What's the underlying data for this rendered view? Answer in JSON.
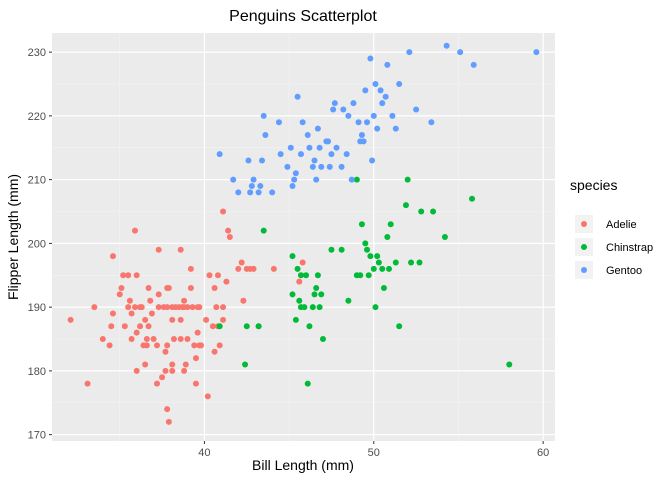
{
  "chart_data": {
    "type": "scatter",
    "title": "Penguins Scatterplot",
    "xlabel": "Bill Length (mm)",
    "ylabel": "Flipper Length (mm)",
    "xlim": [
      31.0,
      60.7
    ],
    "ylim": [
      169.0,
      233.0
    ],
    "x_ticks": [
      40,
      50,
      60
    ],
    "y_ticks": [
      170,
      180,
      190,
      200,
      210,
      220,
      230
    ],
    "grid": true,
    "legend": {
      "title": "species",
      "placement": "right"
    },
    "series": [
      {
        "name": "Adelie",
        "color": "#F8766D",
        "points": [
          [
            32.1,
            188
          ],
          [
            33.1,
            178
          ],
          [
            33.5,
            190
          ],
          [
            34.0,
            185
          ],
          [
            34.4,
            184
          ],
          [
            34.5,
            187
          ],
          [
            34.6,
            189
          ],
          [
            34.6,
            198
          ],
          [
            35.0,
            192
          ],
          [
            35.1,
            193
          ],
          [
            35.2,
            195
          ],
          [
            35.3,
            187
          ],
          [
            35.5,
            190
          ],
          [
            35.5,
            195
          ],
          [
            35.6,
            191
          ],
          [
            35.7,
            185
          ],
          [
            35.7,
            189
          ],
          [
            35.9,
            190
          ],
          [
            35.9,
            202
          ],
          [
            36.0,
            180
          ],
          [
            36.0,
            186
          ],
          [
            36.0,
            195
          ],
          [
            36.2,
            187
          ],
          [
            36.2,
            190
          ],
          [
            36.3,
            190
          ],
          [
            36.4,
            184
          ],
          [
            36.5,
            181
          ],
          [
            36.5,
            188
          ],
          [
            36.6,
            184
          ],
          [
            36.6,
            185
          ],
          [
            36.7,
            187
          ],
          [
            36.7,
            193
          ],
          [
            36.8,
            191
          ],
          [
            36.9,
            189
          ],
          [
            37.0,
            185
          ],
          [
            37.2,
            178
          ],
          [
            37.2,
            184
          ],
          [
            37.3,
            190
          ],
          [
            37.3,
            192
          ],
          [
            37.3,
            199
          ],
          [
            37.5,
            179
          ],
          [
            37.6,
            190
          ],
          [
            37.7,
            180
          ],
          [
            37.7,
            183
          ],
          [
            37.8,
            174
          ],
          [
            37.8,
            184
          ],
          [
            37.8,
            190
          ],
          [
            37.8,
            193
          ],
          [
            37.9,
            172
          ],
          [
            37.9,
            193
          ],
          [
            38.1,
            180
          ],
          [
            38.1,
            181
          ],
          [
            38.1,
            188
          ],
          [
            38.1,
            190
          ],
          [
            38.2,
            185
          ],
          [
            38.3,
            190
          ],
          [
            38.5,
            190
          ],
          [
            38.6,
            185
          ],
          [
            38.6,
            188
          ],
          [
            38.6,
            199
          ],
          [
            38.7,
            190
          ],
          [
            38.8,
            180
          ],
          [
            38.8,
            190
          ],
          [
            38.8,
            191
          ],
          [
            38.9,
            181
          ],
          [
            39.0,
            185
          ],
          [
            39.0,
            190
          ],
          [
            39.2,
            193
          ],
          [
            39.2,
            196
          ],
          [
            39.3,
            190
          ],
          [
            39.4,
            184
          ],
          [
            39.5,
            178
          ],
          [
            39.5,
            182
          ],
          [
            39.6,
            186
          ],
          [
            39.6,
            190
          ],
          [
            39.7,
            184
          ],
          [
            39.7,
            190
          ],
          [
            39.8,
            184
          ],
          [
            40.1,
            188
          ],
          [
            40.2,
            176
          ],
          [
            40.3,
            195
          ],
          [
            40.5,
            187
          ],
          [
            40.6,
            183
          ],
          [
            40.6,
            193
          ],
          [
            40.7,
            190
          ],
          [
            40.8,
            187
          ],
          [
            40.8,
            195
          ],
          [
            40.9,
            184
          ],
          [
            41.1,
            188
          ],
          [
            41.1,
            190
          ],
          [
            41.1,
            205
          ],
          [
            41.3,
            194
          ],
          [
            41.4,
            202
          ],
          [
            41.5,
            201
          ],
          [
            42.0,
            196
          ],
          [
            42.2,
            197
          ],
          [
            42.3,
            191
          ],
          [
            42.5,
            196
          ],
          [
            42.7,
            196
          ],
          [
            42.9,
            196
          ],
          [
            43.2,
            187
          ],
          [
            44.1,
            196
          ],
          [
            45.6,
            194
          ],
          [
            45.8,
            197
          ]
        ]
      },
      {
        "name": "Chinstrap",
        "color": "#00BA38",
        "points": [
          [
            40.9,
            187
          ],
          [
            42.4,
            181
          ],
          [
            42.5,
            187
          ],
          [
            43.2,
            187
          ],
          [
            43.5,
            202
          ],
          [
            45.2,
            192
          ],
          [
            45.2,
            198
          ],
          [
            45.4,
            188
          ],
          [
            45.5,
            196
          ],
          [
            45.6,
            191
          ],
          [
            45.7,
            190
          ],
          [
            45.7,
            195
          ],
          [
            45.9,
            190
          ],
          [
            46.0,
            195
          ],
          [
            46.1,
            178
          ],
          [
            46.2,
            187
          ],
          [
            46.4,
            190
          ],
          [
            46.5,
            192
          ],
          [
            46.6,
            193
          ],
          [
            46.7,
            195
          ],
          [
            46.8,
            190
          ],
          [
            46.9,
            192
          ],
          [
            47.0,
            185
          ],
          [
            47.5,
            199
          ],
          [
            48.1,
            199
          ],
          [
            48.5,
            191
          ],
          [
            49.0,
            195
          ],
          [
            49.0,
            210
          ],
          [
            49.2,
            195
          ],
          [
            49.3,
            203
          ],
          [
            49.5,
            200
          ],
          [
            49.6,
            199
          ],
          [
            49.7,
            195
          ],
          [
            49.8,
            198
          ],
          [
            50.0,
            196
          ],
          [
            50.1,
            190
          ],
          [
            50.2,
            198
          ],
          [
            50.3,
            197
          ],
          [
            50.5,
            196
          ],
          [
            50.6,
            193
          ],
          [
            50.8,
            201
          ],
          [
            50.9,
            196
          ],
          [
            51.0,
            203
          ],
          [
            51.3,
            197
          ],
          [
            51.5,
            187
          ],
          [
            51.9,
            206
          ],
          [
            52.0,
            210
          ],
          [
            52.2,
            197
          ],
          [
            52.7,
            197
          ],
          [
            52.8,
            205
          ],
          [
            53.5,
            205
          ],
          [
            54.2,
            201
          ],
          [
            55.8,
            207
          ],
          [
            58.0,
            181
          ]
        ]
      },
      {
        "name": "Gentoo",
        "color": "#619CFF",
        "points": [
          [
            40.9,
            214
          ],
          [
            41.7,
            210
          ],
          [
            42.0,
            208
          ],
          [
            42.6,
            213
          ],
          [
            42.7,
            208
          ],
          [
            42.8,
            209
          ],
          [
            42.9,
            210
          ],
          [
            43.2,
            208
          ],
          [
            43.3,
            209
          ],
          [
            43.4,
            213
          ],
          [
            43.5,
            220
          ],
          [
            43.6,
            217
          ],
          [
            44.0,
            208
          ],
          [
            44.4,
            219
          ],
          [
            44.5,
            214
          ],
          [
            44.9,
            212
          ],
          [
            45.1,
            215
          ],
          [
            45.2,
            209
          ],
          [
            45.3,
            210
          ],
          [
            45.4,
            211
          ],
          [
            45.5,
            223
          ],
          [
            45.7,
            214
          ],
          [
            45.8,
            219
          ],
          [
            46.1,
            217
          ],
          [
            46.2,
            215
          ],
          [
            46.4,
            212
          ],
          [
            46.5,
            213
          ],
          [
            46.6,
            210
          ],
          [
            46.7,
            218
          ],
          [
            46.8,
            215
          ],
          [
            46.9,
            212
          ],
          [
            47.2,
            216
          ],
          [
            47.3,
            216
          ],
          [
            47.4,
            212
          ],
          [
            47.5,
            214
          ],
          [
            47.6,
            221
          ],
          [
            47.7,
            222
          ],
          [
            47.8,
            215
          ],
          [
            48.1,
            212
          ],
          [
            48.2,
            221
          ],
          [
            48.4,
            214
          ],
          [
            48.5,
            220
          ],
          [
            48.7,
            210
          ],
          [
            48.8,
            222
          ],
          [
            49.1,
            219
          ],
          [
            49.2,
            216
          ],
          [
            49.3,
            217
          ],
          [
            49.4,
            216
          ],
          [
            49.5,
            224
          ],
          [
            49.6,
            219
          ],
          [
            49.8,
            229
          ],
          [
            49.9,
            213
          ],
          [
            50.0,
            220
          ],
          [
            50.1,
            225
          ],
          [
            50.2,
            218
          ],
          [
            50.4,
            224
          ],
          [
            50.5,
            222
          ],
          [
            50.7,
            223
          ],
          [
            50.8,
            228
          ],
          [
            51.1,
            220
          ],
          [
            51.3,
            218
          ],
          [
            51.5,
            225
          ],
          [
            52.1,
            230
          ],
          [
            52.5,
            221
          ],
          [
            53.4,
            219
          ],
          [
            54.3,
            231
          ],
          [
            55.1,
            230
          ],
          [
            55.9,
            228
          ],
          [
            59.6,
            230
          ]
        ]
      }
    ]
  }
}
